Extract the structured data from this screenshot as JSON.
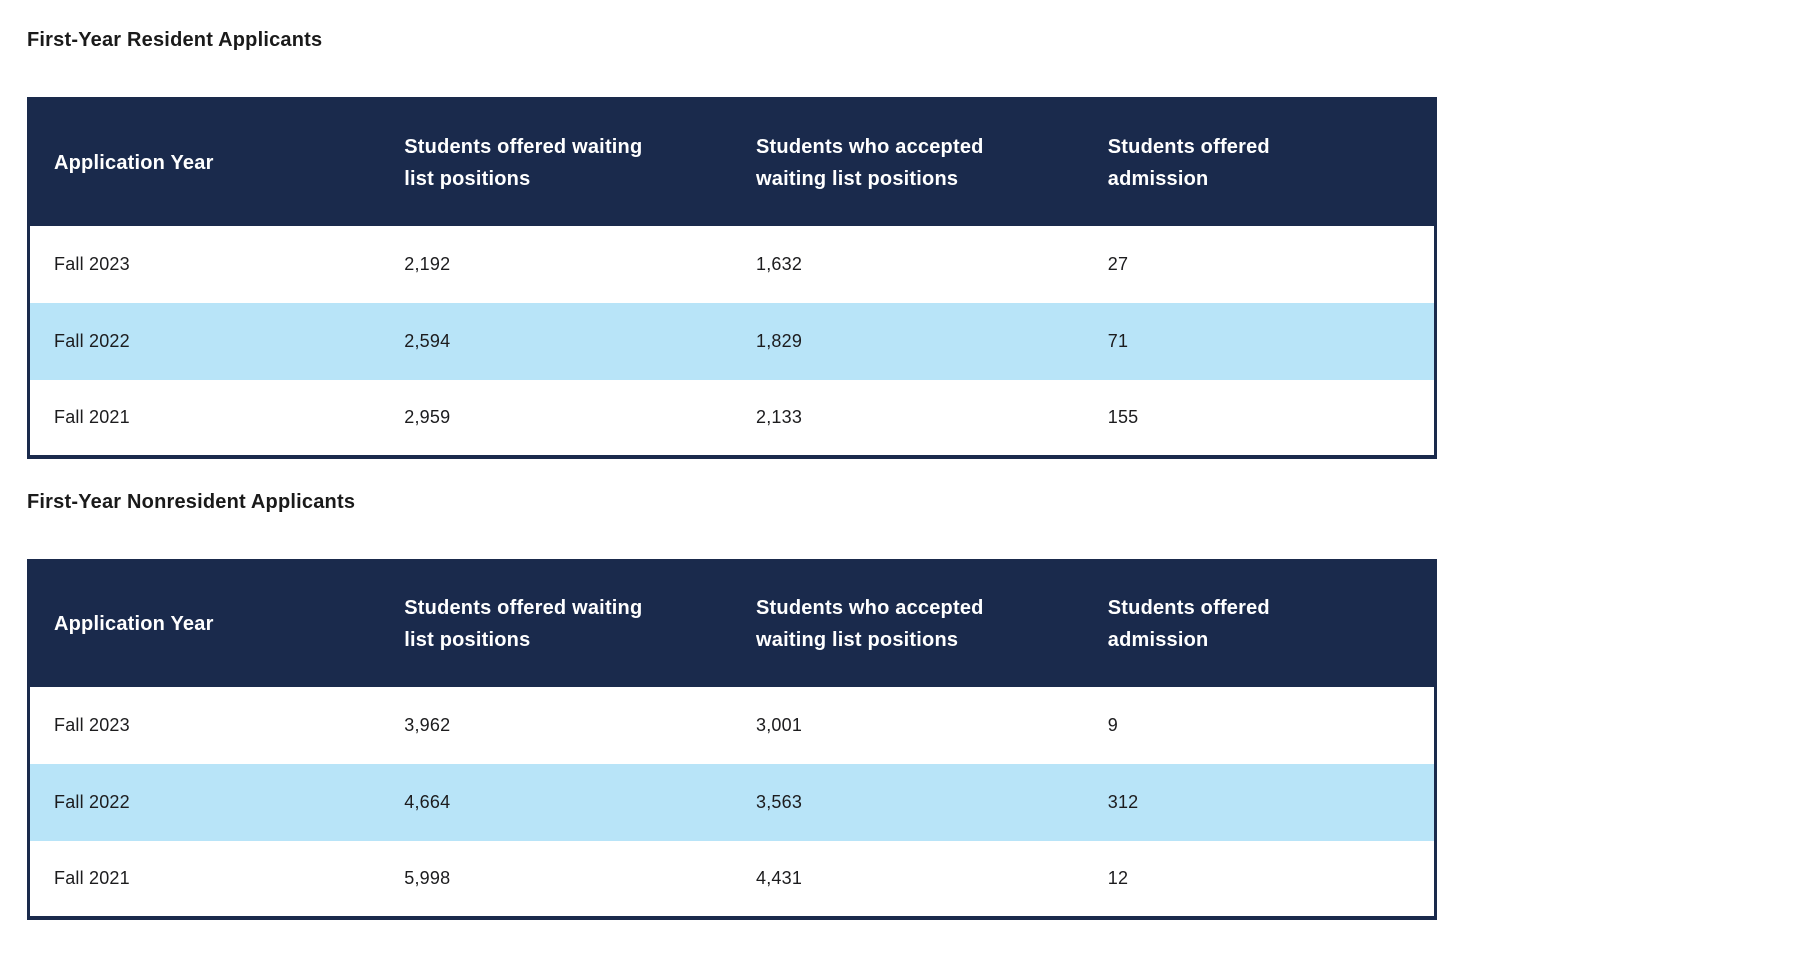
{
  "colors": {
    "header_bg": "#1a2a4c",
    "header_text": "#ffffff",
    "stripe_bg": "#b8e4f8",
    "row_bg": "#ffffff",
    "text": "#1c1c1e",
    "border": "#1a2a4c",
    "title_text": "#1a1a1a"
  },
  "tables": [
    {
      "title": "First-Year Resident Applicants",
      "columns": [
        "Application Year",
        "Students offered waiting\nlist positions",
        "Students who accepted\nwaiting list positions",
        "Students offered\nadmission"
      ],
      "rows": [
        [
          "Fall 2023",
          "2,192",
          "1,632",
          "27"
        ],
        [
          "Fall 2022",
          "2,594",
          "1,829",
          "71"
        ],
        [
          "Fall 2021",
          "2,959",
          "2,133",
          "155"
        ]
      ]
    },
    {
      "title": "First-Year Nonresident Applicants",
      "columns": [
        "Application Year",
        "Students offered waiting\nlist positions",
        "Students who accepted\nwaiting list positions",
        "Students offered\nadmission"
      ],
      "rows": [
        [
          "Fall 2023",
          "3,962",
          "3,001",
          "9"
        ],
        [
          "Fall 2022",
          "4,664",
          "3,563",
          "312"
        ],
        [
          "Fall 2021",
          "5,998",
          "4,431",
          "12"
        ]
      ]
    }
  ],
  "chart_data": [
    {
      "type": "table",
      "title": "First-Year Resident Applicants",
      "columns": [
        "Application Year",
        "Students offered waiting list positions",
        "Students who accepted waiting list positions",
        "Students offered admission"
      ],
      "rows": [
        [
          "Fall 2023",
          2192,
          1632,
          27
        ],
        [
          "Fall 2022",
          2594,
          1829,
          71
        ],
        [
          "Fall 2021",
          2959,
          2133,
          155
        ]
      ]
    },
    {
      "type": "table",
      "title": "First-Year Nonresident Applicants",
      "columns": [
        "Application Year",
        "Students offered waiting list positions",
        "Students who accepted waiting list positions",
        "Students offered admission"
      ],
      "rows": [
        [
          "Fall 2023",
          3962,
          3001,
          9
        ],
        [
          "Fall 2022",
          4664,
          3563,
          312
        ],
        [
          "Fall 2021",
          5998,
          4431,
          12
        ]
      ]
    }
  ]
}
